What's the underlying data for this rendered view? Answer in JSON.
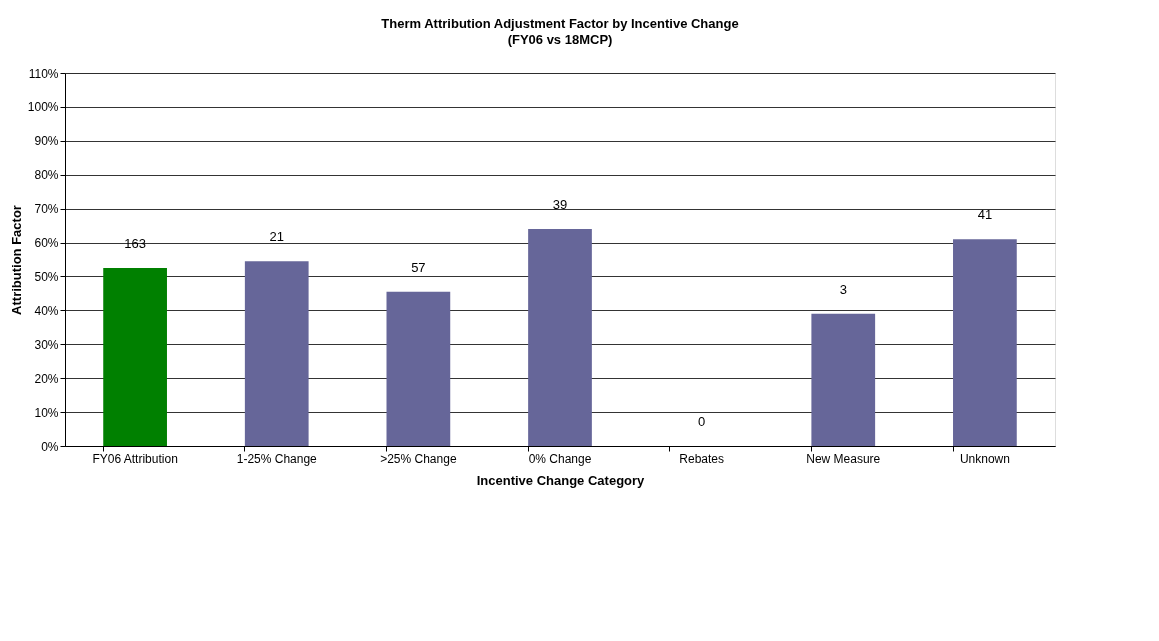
{
  "chart_data": {
    "type": "bar",
    "title": "Therm Attribution Adjustment Factor by Incentive Change",
    "subtitle": "(FY06 vs 18MCP)",
    "xlabel": "Incentive Change Category",
    "ylabel": "Attribution Factor",
    "categories": [
      "FY06 Attribution",
      "1-25% Change",
      ">25% Change",
      "0% Change",
      "Rebates",
      "New Measure",
      "Unknown"
    ],
    "values": [
      52.5,
      54.5,
      45.5,
      64,
      0,
      39,
      61
    ],
    "colors": [
      "#008000",
      "#666699",
      "#666699",
      "#666699",
      "#666699",
      "#666699",
      "#666699"
    ],
    "annotations": [
      {
        "text": "163",
        "x": "FY06 Attribution",
        "y": 52.5
      },
      {
        "text": "21",
        "x": "1-25% Change",
        "y": 54.5
      },
      {
        "text": "57",
        "x": ">25% Change",
        "y": 45.5
      },
      {
        "text": "39",
        "x": "0% Change",
        "y": 64
      },
      {
        "text": "0",
        "x": "Rebates",
        "y": 0
      },
      {
        "text": "3",
        "x": "New Measure",
        "y": 39
      },
      {
        "text": "41",
        "x": "Unknown",
        "y": 61
      }
    ],
    "ylim": [
      0,
      110
    ],
    "yticks": [
      {
        "value": 0,
        "label": "0%"
      },
      {
        "value": 10,
        "label": "10%"
      },
      {
        "value": 20,
        "label": "20%"
      },
      {
        "value": 30,
        "label": "30%"
      },
      {
        "value": 40,
        "label": "40%"
      },
      {
        "value": 50,
        "label": "50%"
      },
      {
        "value": 60,
        "label": "60%"
      },
      {
        "value": 70,
        "label": "70%"
      },
      {
        "value": 80,
        "label": "80%"
      },
      {
        "value": 90,
        "label": "90%"
      },
      {
        "value": 100,
        "label": "100%"
      },
      {
        "value": 110,
        "label": "110%"
      }
    ],
    "grid": "y"
  }
}
